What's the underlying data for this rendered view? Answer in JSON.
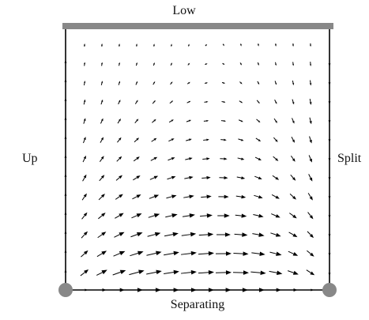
{
  "labels": {
    "top": "Low",
    "left": "Up",
    "right": "Split",
    "bottom": "Separating"
  },
  "colors": {
    "boundary_bar": "#888888",
    "vertex": "#888888",
    "edge": "#000000",
    "arrow": "#000000"
  },
  "vector_field": {
    "rows": 13,
    "cols": 14
  }
}
